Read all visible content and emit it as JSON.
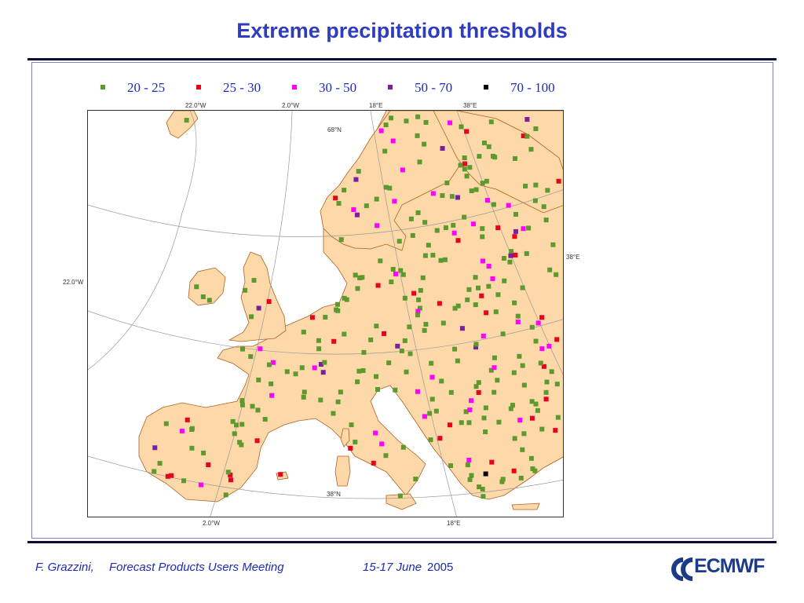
{
  "title": "Extreme precipitation thresholds",
  "legend": [
    {
      "label": "20 - 25",
      "color": "#5d9a2e"
    },
    {
      "label": "25 - 30",
      "color": "#e8001c"
    },
    {
      "label": "30 - 50",
      "color": "#ff00ff"
    },
    {
      "label": "50 - 70",
      "color": "#7a1fa0"
    },
    {
      "label": "70 - 100",
      "color": "#000000"
    }
  ],
  "map": {
    "land_color": "#fdd8a8",
    "sea_color": "#ffffff",
    "graticule_labels": {
      "top": [
        "22.0°W",
        "2.0°W",
        "18°E",
        "38°E"
      ],
      "bottom": [
        "2.0°W",
        "18°E"
      ],
      "left": [
        "22.0°W"
      ],
      "right": [
        "38°E"
      ],
      "inner": [
        "68°N",
        "38°N"
      ]
    }
  },
  "footer": {
    "author": "F. Grazzini,",
    "event": "Forecast Products Users Meeting",
    "date_days": "15-17 June",
    "date_year": "2005"
  },
  "logo": {
    "text": "ECMWF"
  }
}
